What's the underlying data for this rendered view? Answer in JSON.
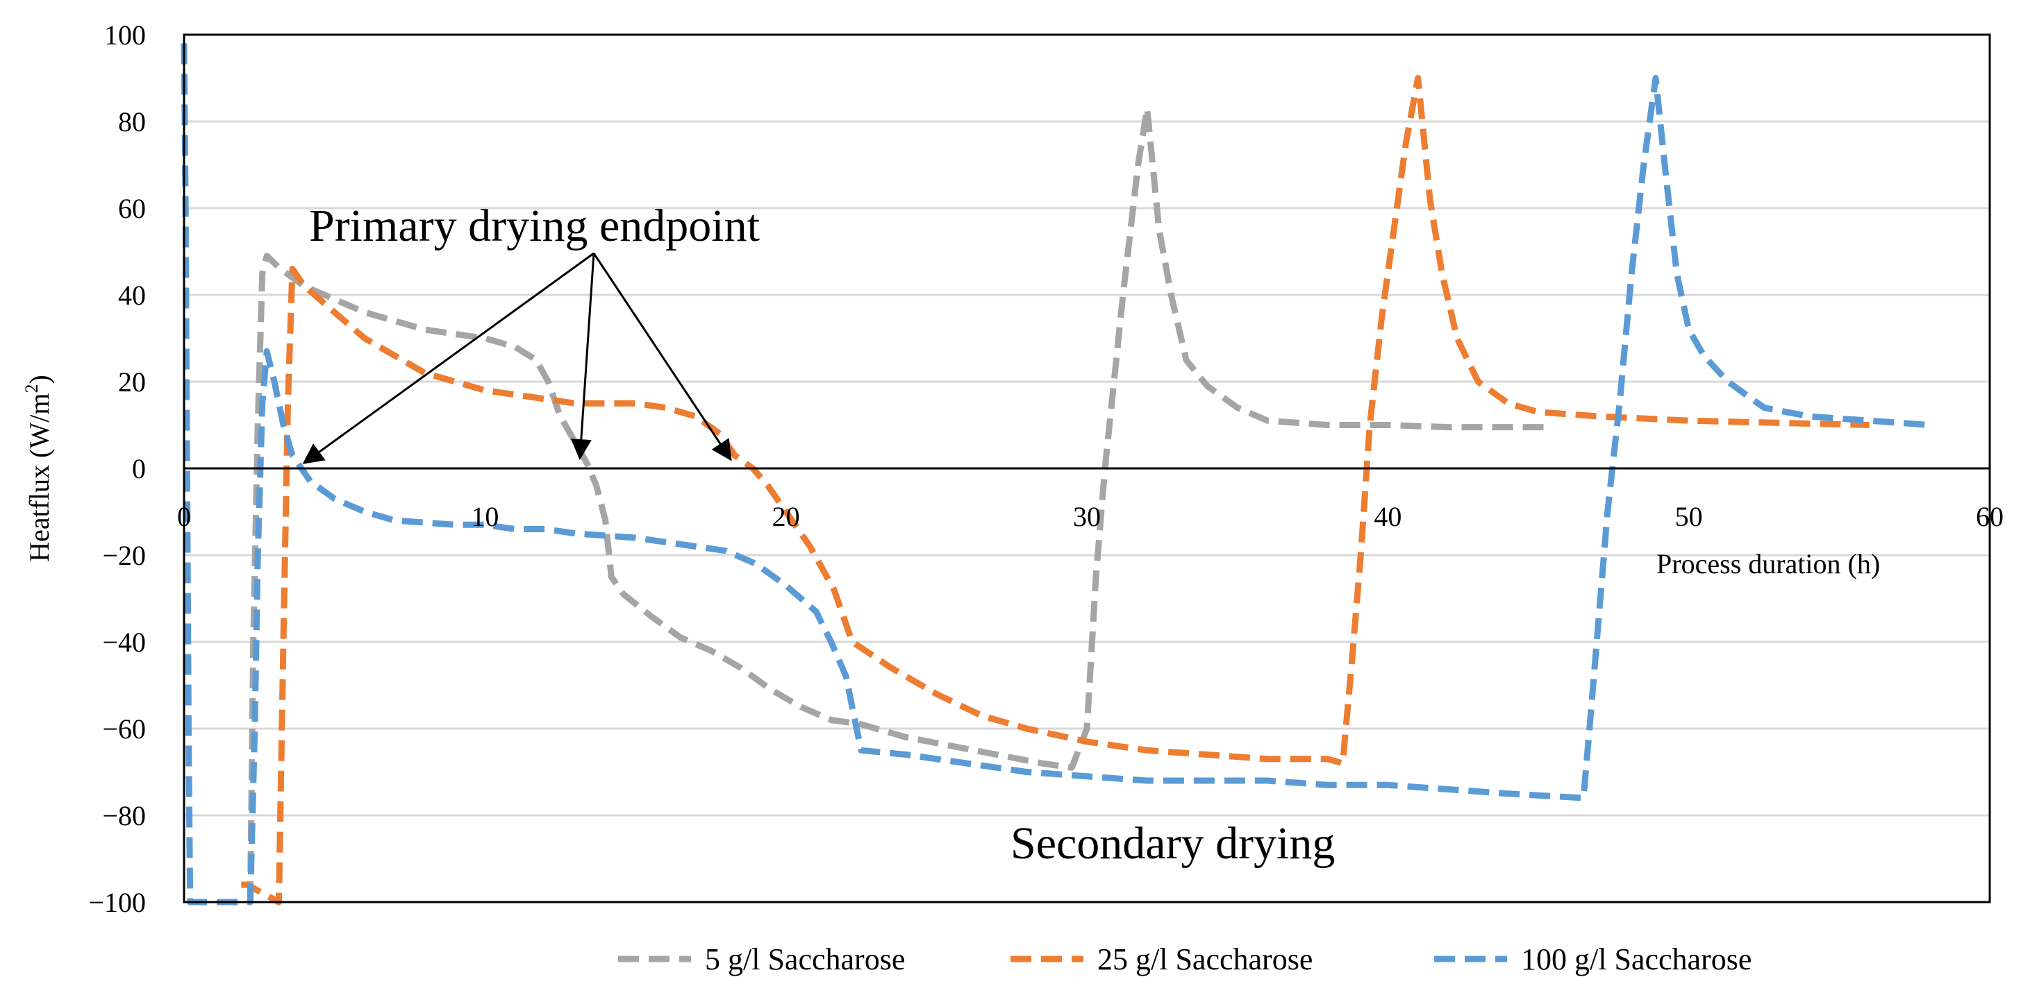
{
  "chart_data": {
    "type": "line",
    "title": "",
    "xlabel": "Process duration (h)",
    "ylabel": "Heatflux (W/m²)",
    "ylabel_base": "Heatflux (W/m",
    "ylabel_sup": "2",
    "ylabel_end": ")",
    "xlim": [
      0,
      60
    ],
    "ylim": [
      -100,
      100
    ],
    "x_ticks": [
      0,
      10,
      20,
      30,
      40,
      50,
      60
    ],
    "y_ticks": [
      100,
      80,
      60,
      40,
      20,
      0,
      -20,
      -40,
      -60,
      -80,
      -100
    ],
    "y_tick_labels": [
      "100",
      "80",
      "60",
      "40",
      "20",
      "0",
      "−20",
      "−40",
      "−60",
      "−80",
      "−100"
    ],
    "grid": true,
    "legend_position": "bottom",
    "series": [
      {
        "name": "5 g/l Saccharose",
        "color": "#a5a5a5",
        "points": [
          [
            2.2,
            -100
          ],
          [
            2.3,
            -40
          ],
          [
            2.45,
            10
          ],
          [
            2.6,
            45
          ],
          [
            2.75,
            49
          ],
          [
            3.2,
            46
          ],
          [
            4,
            42
          ],
          [
            5,
            39
          ],
          [
            6,
            36
          ],
          [
            7,
            34
          ],
          [
            8,
            32
          ],
          [
            9,
            31
          ],
          [
            10,
            30
          ],
          [
            11,
            28
          ],
          [
            11.7,
            25
          ],
          [
            12.1,
            20
          ],
          [
            12.5,
            12
          ],
          [
            13,
            6
          ],
          [
            13.4,
            1
          ],
          [
            13.7,
            -4
          ],
          [
            14,
            -12
          ],
          [
            14.2,
            -25
          ],
          [
            14.6,
            -29
          ],
          [
            15.5,
            -34
          ],
          [
            16.5,
            -39
          ],
          [
            17.5,
            -42
          ],
          [
            18.5,
            -46
          ],
          [
            19.5,
            -51
          ],
          [
            20.5,
            -55
          ],
          [
            21.5,
            -58
          ],
          [
            22.5,
            -59
          ],
          [
            24,
            -62
          ],
          [
            25.5,
            -64
          ],
          [
            27,
            -66
          ],
          [
            28.5,
            -68
          ],
          [
            29.5,
            -69
          ],
          [
            30,
            -60
          ],
          [
            30.3,
            -25
          ],
          [
            30.6,
            0
          ],
          [
            31.2,
            40
          ],
          [
            31.7,
            70
          ],
          [
            32,
            83
          ],
          [
            32.4,
            55
          ],
          [
            32.8,
            40
          ],
          [
            33.3,
            25
          ],
          [
            34,
            19
          ],
          [
            35,
            14
          ],
          [
            36,
            11
          ],
          [
            38,
            10
          ],
          [
            40,
            10
          ],
          [
            42,
            9.5
          ],
          [
            44,
            9.5
          ],
          [
            45.2,
            9.5
          ]
        ]
      },
      {
        "name": "25 g/l Saccharose",
        "color": "#ed7d31",
        "points": [
          [
            1.9,
            -96
          ],
          [
            2.1,
            -96
          ],
          [
            3.15,
            -100
          ],
          [
            3.3,
            -40
          ],
          [
            3.45,
            15
          ],
          [
            3.6,
            46
          ],
          [
            4,
            42
          ],
          [
            5,
            36
          ],
          [
            6,
            30
          ],
          [
            7,
            26
          ],
          [
            8,
            22
          ],
          [
            9,
            20
          ],
          [
            10,
            18
          ],
          [
            11,
            17
          ],
          [
            12,
            16
          ],
          [
            13,
            15
          ],
          [
            14,
            15
          ],
          [
            15,
            15
          ],
          [
            16,
            14
          ],
          [
            17,
            12
          ],
          [
            17.8,
            8
          ],
          [
            18.3,
            3
          ],
          [
            18.9,
            0
          ],
          [
            19.4,
            -4
          ],
          [
            20,
            -10
          ],
          [
            20.8,
            -18
          ],
          [
            21.6,
            -28
          ],
          [
            22.2,
            -40
          ],
          [
            23.5,
            -46
          ],
          [
            25,
            -52
          ],
          [
            26.5,
            -57
          ],
          [
            28,
            -60
          ],
          [
            30,
            -63
          ],
          [
            32,
            -65
          ],
          [
            34,
            -66
          ],
          [
            36,
            -67
          ],
          [
            38,
            -67
          ],
          [
            38.5,
            -68
          ],
          [
            38.8,
            -45
          ],
          [
            39.1,
            -20
          ],
          [
            39.4,
            10
          ],
          [
            39.8,
            35
          ],
          [
            40.2,
            55
          ],
          [
            40.6,
            75
          ],
          [
            41,
            90
          ],
          [
            41.4,
            62
          ],
          [
            41.8,
            45
          ],
          [
            42.3,
            30
          ],
          [
            43,
            20
          ],
          [
            44,
            15
          ],
          [
            45,
            13
          ],
          [
            47,
            12
          ],
          [
            50,
            11
          ],
          [
            53,
            10.5
          ],
          [
            56,
            10
          ]
        ]
      },
      {
        "name": "100 g/l Saccharose",
        "color": "#5b9bd5",
        "points": [
          [
            0,
            98
          ],
          [
            0.05,
            60
          ],
          [
            0.1,
            0
          ],
          [
            0.15,
            -60
          ],
          [
            0.2,
            -100
          ],
          [
            2.2,
            -100
          ],
          [
            2.35,
            -60
          ],
          [
            2.45,
            -20
          ],
          [
            2.6,
            15
          ],
          [
            2.75,
            27
          ],
          [
            3,
            20
          ],
          [
            3.3,
            10
          ],
          [
            3.6,
            3
          ],
          [
            4.2,
            -3
          ],
          [
            5,
            -7
          ],
          [
            6,
            -10
          ],
          [
            7,
            -12
          ],
          [
            8,
            -12.5
          ],
          [
            9,
            -13
          ],
          [
            10,
            -13
          ],
          [
            11,
            -14
          ],
          [
            12,
            -14
          ],
          [
            13,
            -15
          ],
          [
            15,
            -16
          ],
          [
            16,
            -17
          ],
          [
            17,
            -18
          ],
          [
            18,
            -19
          ],
          [
            19,
            -22
          ],
          [
            20,
            -27
          ],
          [
            21,
            -33
          ],
          [
            21.5,
            -40
          ],
          [
            22,
            -48
          ],
          [
            22.2,
            -55
          ],
          [
            22.5,
            -65
          ],
          [
            24,
            -66
          ],
          [
            26,
            -68
          ],
          [
            28,
            -70
          ],
          [
            30,
            -71
          ],
          [
            32,
            -72
          ],
          [
            34,
            -72
          ],
          [
            36,
            -72
          ],
          [
            38,
            -73
          ],
          [
            40,
            -73
          ],
          [
            42,
            -74
          ],
          [
            44,
            -75
          ],
          [
            46.5,
            -76
          ],
          [
            46.7,
            -60
          ],
          [
            47,
            -35
          ],
          [
            47.3,
            -10
          ],
          [
            47.7,
            15
          ],
          [
            48.1,
            45
          ],
          [
            48.5,
            70
          ],
          [
            48.9,
            90
          ],
          [
            49.2,
            70
          ],
          [
            49.6,
            45
          ],
          [
            50,
            32
          ],
          [
            50.5,
            26
          ],
          [
            51.3,
            20
          ],
          [
            52.5,
            14
          ],
          [
            54,
            12
          ],
          [
            56,
            11
          ],
          [
            58,
            10
          ]
        ]
      }
    ],
    "annotations": {
      "primary": "Primary drying endpoint",
      "secondary": "Secondary drying"
    }
  }
}
